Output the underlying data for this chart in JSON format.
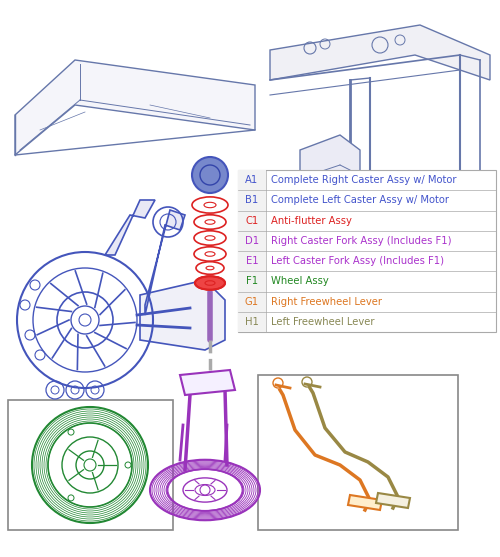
{
  "bg_color": "#ffffff",
  "fig_w": 5.0,
  "fig_h": 5.57,
  "dpi": 100,
  "table": {
    "rows": [
      {
        "key": "A1",
        "desc": "Complete Right Caster Assy w/ Motor",
        "key_color": "#4455cc",
        "desc_color": "#4455cc"
      },
      {
        "key": "B1",
        "desc": "Complete Left Caster Assy w/ Motor",
        "key_color": "#4455cc",
        "desc_color": "#4455cc"
      },
      {
        "key": "C1",
        "desc": "Anti-flutter Assy",
        "key_color": "#dd2222",
        "desc_color": "#dd2222"
      },
      {
        "key": "D1",
        "desc": "Right Caster Fork Assy (Includes F1)",
        "key_color": "#aa33cc",
        "desc_color": "#aa33cc"
      },
      {
        "key": "E1",
        "desc": "Left Caster Fork Assy (Includes F1)",
        "key_color": "#aa33cc",
        "desc_color": "#aa33cc"
      },
      {
        "key": "F1",
        "desc": "Wheel Assy",
        "key_color": "#228822",
        "desc_color": "#228822"
      },
      {
        "key": "G1",
        "desc": "Right Freewheel Lever",
        "key_color": "#dd7722",
        "desc_color": "#dd7722"
      },
      {
        "key": "H1",
        "desc": "Left Freewheel Lever",
        "key_color": "#888855",
        "desc_color": "#888855"
      }
    ],
    "border_color": "#aaaaaa",
    "font_size": 7.2
  },
  "colors": {
    "blue": "#4455bb",
    "blue_dark": "#3344aa",
    "red": "#dd2222",
    "purple": "#9933bb",
    "purple_dark": "#7722aa",
    "green": "#228833",
    "orange": "#dd7722",
    "tan": "#998844",
    "gray": "#888899",
    "gray_frame": "#778899",
    "light_gray": "#aabbcc"
  }
}
